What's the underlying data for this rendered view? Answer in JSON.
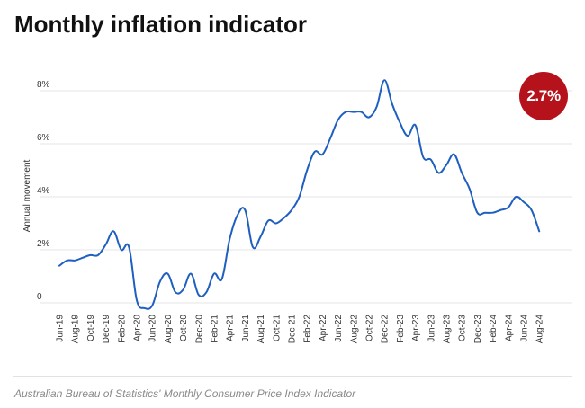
{
  "title": "Monthly inflation indicator",
  "source": "Australian Bureau of Statistics' Monthly Consumer Price Index Indicator",
  "badge": {
    "text": "2.7%",
    "color": "#b5121b"
  },
  "chart_data": {
    "type": "line",
    "title": "Monthly inflation indicator",
    "xlabel": "",
    "ylabel": "Annual movement",
    "ylim": [
      -0.4,
      8.8
    ],
    "grid": true,
    "y_ticks": [
      {
        "value": 0,
        "label": "0"
      },
      {
        "value": 2,
        "label": "2%"
      },
      {
        "value": 4,
        "label": "4%"
      },
      {
        "value": 6,
        "label": "6%"
      },
      {
        "value": 8,
        "label": "8%"
      }
    ],
    "x_tick_labels": [
      "Jun-19",
      "Aug-19",
      "Oct-19",
      "Dec-19",
      "Feb-20",
      "Apr-20",
      "Jun-20",
      "Aug-20",
      "Oct-20",
      "Dec-20",
      "Feb-21",
      "Apr-21",
      "Jun-21",
      "Aug-21",
      "Oct-21",
      "Dec-21",
      "Feb-22",
      "Apr-22",
      "Jun-22",
      "Aug-22",
      "Oct-22",
      "Dec-22",
      "Feb-23",
      "Apr-23",
      "Jun-23",
      "Aug-23",
      "Oct-23",
      "Dec-23",
      "Feb-24",
      "Apr-24",
      "Jun-24",
      "Aug-24"
    ],
    "line_color": "#1f5fbf",
    "series": [
      {
        "x": [
          "Jun-19",
          "Jul-19",
          "Aug-19",
          "Sep-19",
          "Oct-19",
          "Nov-19",
          "Dec-19",
          "Jan-20",
          "Feb-20",
          "Mar-20",
          "Apr-20",
          "May-20",
          "Jun-20",
          "Jul-20",
          "Aug-20",
          "Sep-20",
          "Oct-20",
          "Nov-20",
          "Dec-20",
          "Jan-21",
          "Feb-21",
          "Mar-21",
          "Apr-21",
          "May-21",
          "Jun-21",
          "Jul-21",
          "Aug-21",
          "Sep-21",
          "Oct-21",
          "Nov-21",
          "Dec-21",
          "Jan-22",
          "Feb-22",
          "Mar-22",
          "Apr-22",
          "May-22",
          "Jun-22",
          "Jul-22",
          "Aug-22",
          "Sep-22",
          "Oct-22",
          "Nov-22",
          "Dec-22",
          "Jan-23",
          "Feb-23",
          "Mar-23",
          "Apr-23",
          "May-23",
          "Jun-23",
          "Jul-23",
          "Aug-23",
          "Sep-23",
          "Oct-23",
          "Nov-23",
          "Dec-23",
          "Jan-24",
          "Feb-24",
          "Mar-24",
          "Apr-24",
          "May-24",
          "Jun-24",
          "Jul-24",
          "Aug-24"
        ],
        "values": [
          1.4,
          1.6,
          1.6,
          1.7,
          1.8,
          1.8,
          2.2,
          2.7,
          2.0,
          2.1,
          0.1,
          -0.2,
          -0.1,
          0.8,
          1.1,
          0.4,
          0.5,
          1.1,
          0.3,
          0.4,
          1.1,
          0.9,
          2.4,
          3.3,
          3.5,
          2.1,
          2.5,
          3.1,
          3.0,
          3.2,
          3.5,
          4.0,
          5.0,
          5.7,
          5.6,
          6.2,
          6.9,
          7.2,
          7.2,
          7.2,
          7.0,
          7.4,
          8.4,
          7.5,
          6.8,
          6.3,
          6.7,
          5.5,
          5.4,
          4.9,
          5.2,
          5.6,
          4.9,
          4.3,
          3.4,
          3.4,
          3.4,
          3.5,
          3.6,
          4.0,
          3.8,
          3.5,
          2.7
        ]
      }
    ]
  }
}
